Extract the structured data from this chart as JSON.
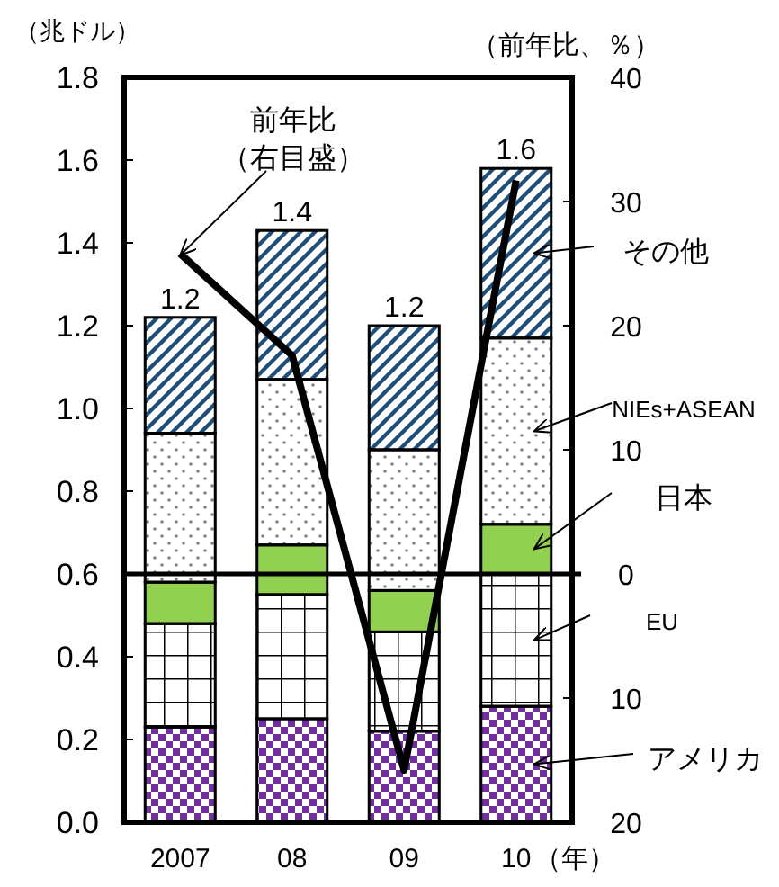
{
  "chart_data": {
    "type": "bar",
    "stacked": true,
    "ylabel": "（兆ドル）",
    "y2label": "（前年比、％）",
    "xlabel": "（年）",
    "categories": [
      "2007",
      "08",
      "09",
      "10"
    ],
    "series": [
      {
        "name": "アメリカ",
        "color": "#7030a0",
        "values": [
          0.23,
          0.25,
          0.22,
          0.28
        ]
      },
      {
        "name": "EU",
        "color": "#000000",
        "values": [
          0.25,
          0.3,
          0.24,
          0.32
        ]
      },
      {
        "name": "日本",
        "color": "#92d050",
        "values": [
          0.1,
          0.12,
          0.1,
          0.12
        ]
      },
      {
        "name": "NIEs+ASEAN",
        "color": "#808080",
        "values": [
          0.36,
          0.4,
          0.34,
          0.45
        ]
      },
      {
        "name": "その他",
        "color": "#1f4e79",
        "values": [
          0.28,
          0.36,
          0.3,
          0.41
        ]
      },
      {
        "type": "line",
        "axis": "y2",
        "color": "#000000",
        "values": [
          25.8,
          17.6,
          -15.8,
          31.7
        ]
      }
    ],
    "totals": [
      "1.2",
      "1.4",
      "1.2",
      "1.6"
    ],
    "ylim": [
      0,
      1.8
    ],
    "yticks": [
      {
        "value": 0,
        "label": "0.0"
      },
      {
        "value": 0.2,
        "label": "0.2"
      },
      {
        "value": 0.4,
        "label": "0.4"
      },
      {
        "value": 0.6,
        "label": "0.6"
      },
      {
        "value": 0.8,
        "label": "0.8"
      },
      {
        "value": 1.0,
        "label": "1.0"
      },
      {
        "value": 1.2,
        "label": "1.2"
      },
      {
        "value": 1.4,
        "label": "1.4"
      },
      {
        "value": 1.6,
        "label": "1.6"
      },
      {
        "value": 1.8,
        "label": "1.8"
      }
    ],
    "y2lim": [
      -20,
      40
    ],
    "y2ticks": [
      40,
      30,
      20,
      10,
      0,
      {
        "value": -10,
        "label": "10"
      },
      {
        "value": -20,
        "label": "20"
      }
    ],
    "ref_lines": [
      {
        "axis": "y2",
        "value": 0,
        "color": "#000000"
      }
    ],
    "annotations": [
      {
        "text": "前年比（右目盛）",
        "x": "2007",
        "y": 1.37
      }
    ],
    "legend": false
  }
}
